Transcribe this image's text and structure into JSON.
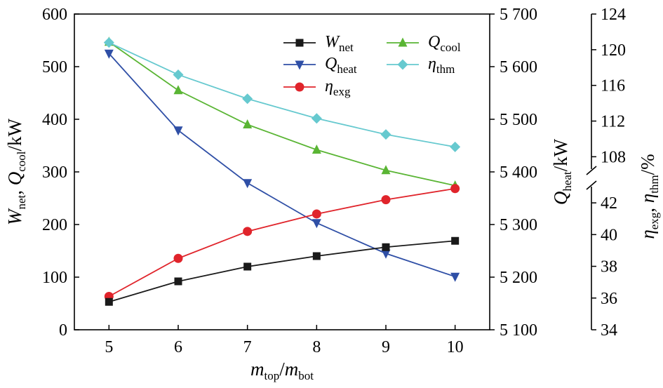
{
  "chart_data": {
    "type": "line",
    "x": [
      5,
      6,
      7,
      8,
      9,
      10
    ],
    "xticks": [
      "5",
      "6",
      "7",
      "8",
      "9",
      "10"
    ],
    "xlim": [
      4.5,
      10.5
    ],
    "xlabel": {
      "main1": "m",
      "sub1": "top",
      "slash": "/",
      "main2": "m",
      "sub2": "bot"
    },
    "left_axis": {
      "ylim": [
        0,
        600
      ],
      "ticks": [
        0,
        100,
        200,
        300,
        400,
        500,
        600
      ],
      "tick_labels": [
        "0",
        "100",
        "200",
        "300",
        "400",
        "500",
        "600"
      ],
      "label": {
        "w": "W",
        "w_sub": "net",
        "sep": ", ",
        "q": "Q",
        "q_sub": "cool",
        "unit": "/kW"
      }
    },
    "mid_axis": {
      "ylim": [
        5100,
        5700
      ],
      "ticks": [
        5100,
        5200,
        5300,
        5400,
        5500,
        5600,
        5700
      ],
      "tick_labels": [
        "5 100",
        "5 200",
        "5 300",
        "5 400",
        "5 500",
        "5 600",
        "5 700"
      ],
      "label": {
        "q": "Q",
        "q_sub": "heat",
        "unit": "/kW"
      }
    },
    "right_axis": {
      "broken": true,
      "upper": {
        "ylim": [
          106.3,
          124
        ],
        "ticks": [
          108,
          112,
          116,
          120,
          124
        ],
        "tick_labels": [
          "108",
          "112",
          "116",
          "120",
          "124"
        ]
      },
      "lower": {
        "ylim": [
          34,
          43.2
        ],
        "ticks": [
          34,
          36,
          38,
          40,
          42
        ],
        "tick_labels": [
          "34",
          "36",
          "38",
          "40",
          "42"
        ]
      },
      "label": {
        "e": "η",
        "e_sub": "exg",
        "sep": ", ",
        "t": "η",
        "t_sub": "thm",
        "unit": "/%"
      }
    },
    "series": [
      {
        "name": "W",
        "name_sub": "net",
        "axis": "left",
        "marker": "square",
        "color": "#1a1a1a",
        "values": [
          53,
          92,
          120,
          140,
          157,
          169
        ]
      },
      {
        "name": "Q",
        "name_sub": "heat",
        "axis": "mid",
        "marker": "triangle-down",
        "color": "#2f4fa6",
        "values": [
          5625,
          5479,
          5379,
          5303,
          5245,
          5201
        ]
      },
      {
        "name": "η",
        "name_sub": "exg",
        "axis": "right-lower",
        "marker": "circle",
        "color": "#e0242b",
        "values": [
          36.1,
          38.5,
          40.2,
          41.3,
          42.2,
          42.9
        ]
      },
      {
        "name": "Q",
        "name_sub": "cool",
        "axis": "left",
        "marker": "triangle-up",
        "color": "#5ab534",
        "values": [
          547,
          455,
          390,
          342,
          303,
          274
        ]
      },
      {
        "name": "η",
        "name_sub": "thm",
        "axis": "right-upper",
        "marker": "diamond",
        "color": "#66c9cf",
        "values": [
          120.8,
          117.2,
          114.5,
          112.3,
          110.5,
          109.1
        ]
      }
    ],
    "legend_position": "top-center",
    "grid": false
  }
}
